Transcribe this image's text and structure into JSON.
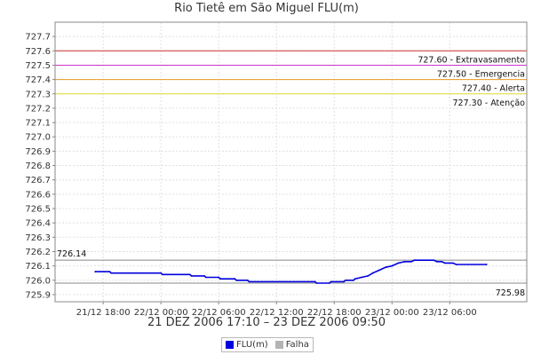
{
  "chart_data": {
    "type": "line",
    "title": "Rio Tietê em São Miguel FLU(m)",
    "xlabel": "21 DEZ 2006 17:10 – 23 DEZ 2006 09:50",
    "ylabel": "",
    "ylim": [
      725.9,
      727.7
    ],
    "yticks": [
      "725.9",
      "726.0",
      "726.1",
      "726.2",
      "726.3",
      "726.4",
      "726.5",
      "726.6",
      "726.7",
      "726.8",
      "726.9",
      "727.0",
      "727.1",
      "727.2",
      "727.3",
      "727.4",
      "727.5",
      "727.6",
      "727.7"
    ],
    "xticks": [
      "21/12 18:00",
      "22/12 00:00",
      "22/12 06:00",
      "22/12 12:00",
      "22/12 18:00",
      "23/12 00:00",
      "23/12 06:00"
    ],
    "grid": true,
    "thresholds": [
      {
        "value": 727.6,
        "label": "727.60 - Extravasamento",
        "color": "#cc3333"
      },
      {
        "value": 727.5,
        "label": "727.50 - Emergencia",
        "color": "#cc33cc"
      },
      {
        "value": 727.4,
        "label": "727.40 - Alerta",
        "color": "#ee9922"
      },
      {
        "value": 727.3,
        "label": "727.30 - Atenção",
        "color": "#dddd33"
      }
    ],
    "max_line": {
      "value": 726.14,
      "label": "726.14"
    },
    "min_line": {
      "value": 725.98,
      "label": "725.98"
    },
    "series": [
      {
        "name": "FLU(m)",
        "color": "#0000dd",
        "x": [
          "21/12 17:10",
          "21/12 18:40",
          "21/12 18:50",
          "22/12 00:00",
          "22/12 00:10",
          "22/12 03:00",
          "22/12 03:10",
          "22/12 04:30",
          "22/12 04:40",
          "22/12 06:00",
          "22/12 06:10",
          "22/12 07:40",
          "22/12 07:50",
          "22/12 09:00",
          "22/12 09:10",
          "22/12 16:00",
          "22/12 16:10",
          "22/12 17:30",
          "22/12 17:40",
          "22/12 19:00",
          "22/12 19:10",
          "22/12 20:00",
          "22/12 20:10",
          "22/12 20:50",
          "22/12 21:30",
          "22/12 22:00",
          "22/12 22:40",
          "22/12 23:20",
          "23/12 00:00",
          "23/12 00:40",
          "23/12 01:20",
          "23/12 02:00",
          "23/12 02:20",
          "23/12 04:20",
          "23/12 04:40",
          "23/12 05:10",
          "23/12 05:30",
          "23/12 06:20",
          "23/12 06:40",
          "23/12 09:50"
        ],
        "y": [
          726.06,
          726.06,
          726.05,
          726.05,
          726.04,
          726.04,
          726.03,
          726.03,
          726.02,
          726.02,
          726.01,
          726.01,
          726.0,
          726.0,
          725.99,
          725.99,
          725.98,
          725.98,
          725.99,
          725.99,
          726.0,
          726.0,
          726.01,
          726.02,
          726.03,
          726.05,
          726.07,
          726.09,
          726.1,
          726.12,
          726.13,
          726.13,
          726.14,
          726.14,
          726.13,
          726.13,
          726.12,
          726.12,
          726.11,
          726.11
        ]
      },
      {
        "name": "Falha",
        "color": "#b4b4b4",
        "x": [],
        "y": []
      }
    ]
  }
}
